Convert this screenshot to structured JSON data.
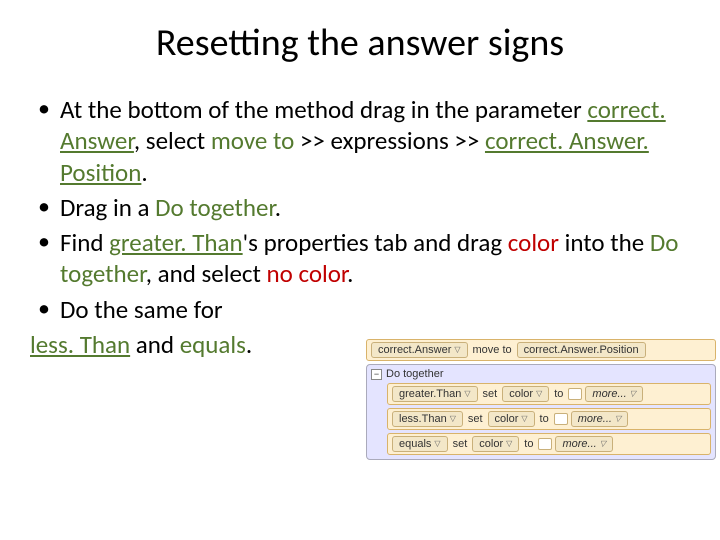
{
  "title": "Resetting the answer signs",
  "bullets": {
    "b1_p1": "At the bottom of the method drag in the parameter ",
    "b1_correctAnswer": "correct. Answer",
    "b1_p2": ", select ",
    "b1_moveto": "move to ",
    "b1_p3": ">> expressions >> ",
    "b1_correctAnswerPos": "correct. Answer. Position",
    "b1_period": ".",
    "b2_p1": "Drag in a ",
    "b2_dotogether": "Do together",
    "b2_period": ".",
    "b3_p1": "Find ",
    "b3_greater": "greater. Than",
    "b3_p2": "'s properties tab and drag ",
    "b3_color": "color ",
    "b3_p3": "into the ",
    "b3_dotogether": "Do together",
    "b3_p4": ", and select ",
    "b3_nocolor": "no color",
    "b3_period": ".",
    "b4": "Do the same for"
  },
  "lastline": {
    "less": "less. Than",
    "and": " and ",
    "equals": "equals",
    "period": "."
  },
  "code": {
    "top_correctAnswer": "correct.Answer",
    "top_moveto": "move to",
    "top_correctAnswerPos": "correct.Answer.Position",
    "dotogether_label": "Do together",
    "row1_obj": "greater.Than",
    "row2_obj": "less.Than",
    "row3_obj": "equals",
    "setcolor": "set",
    "color_word": "color",
    "to_word": "to",
    "more": "more..."
  }
}
